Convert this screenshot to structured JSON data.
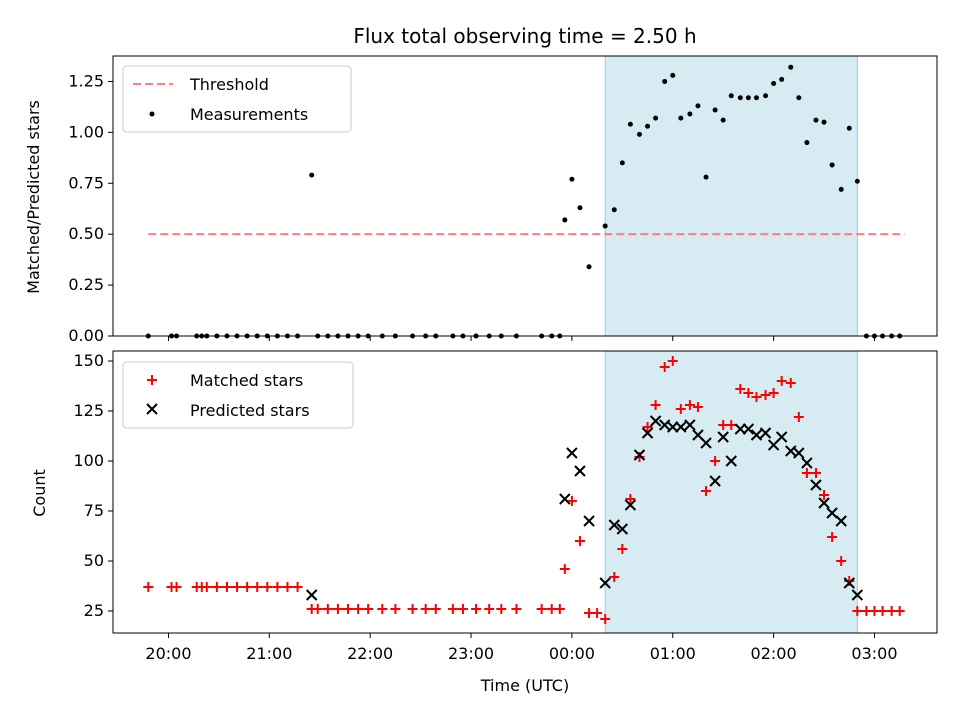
{
  "chart_data": [
    {
      "type": "scatter",
      "title": "Flux total observing time = 2.50 h",
      "xlabel": "",
      "ylabel": "Matched/Predicted stars",
      "ylim": [
        0,
        1.375
      ],
      "yticks": [
        "0.00",
        "0.25",
        "0.50",
        "0.75",
        "1.00",
        "1.25"
      ],
      "shaded_interval_hours": [
        24.33,
        26.83
      ],
      "legend_position": "top-left",
      "threshold": {
        "name": "Threshold",
        "value": 0.5,
        "x_range": [
          19.8,
          27.3
        ],
        "color": "#ff7f7f"
      },
      "series": [
        {
          "name": "Measurements",
          "color": "#000000",
          "points": [
            [
              19.8,
              0
            ],
            [
              20.03,
              0
            ],
            [
              20.08,
              0
            ],
            [
              20.28,
              0
            ],
            [
              20.33,
              0
            ],
            [
              20.38,
              0
            ],
            [
              20.48,
              0
            ],
            [
              20.58,
              0
            ],
            [
              20.68,
              0
            ],
            [
              20.78,
              0
            ],
            [
              20.88,
              0
            ],
            [
              20.98,
              0
            ],
            [
              21.08,
              0
            ],
            [
              21.18,
              0
            ],
            [
              21.28,
              0
            ],
            [
              21.42,
              0.79
            ],
            [
              21.48,
              0
            ],
            [
              21.58,
              0
            ],
            [
              21.68,
              0
            ],
            [
              21.78,
              0
            ],
            [
              21.88,
              0
            ],
            [
              21.98,
              0
            ],
            [
              22.12,
              0
            ],
            [
              22.25,
              0
            ],
            [
              22.42,
              0
            ],
            [
              22.55,
              0
            ],
            [
              22.65,
              0
            ],
            [
              22.82,
              0
            ],
            [
              22.92,
              0
            ],
            [
              23.05,
              0
            ],
            [
              23.18,
              0
            ],
            [
              23.3,
              0
            ],
            [
              23.45,
              0
            ],
            [
              23.7,
              0
            ],
            [
              23.8,
              0
            ],
            [
              23.88,
              0
            ],
            [
              23.93,
              0.57
            ],
            [
              24.0,
              0.77
            ],
            [
              24.08,
              0.63
            ],
            [
              24.17,
              0.34
            ],
            [
              24.33,
              0.54
            ],
            [
              24.42,
              0.62
            ],
            [
              24.5,
              0.85
            ],
            [
              24.58,
              1.04
            ],
            [
              24.67,
              0.99
            ],
            [
              24.75,
              1.03
            ],
            [
              24.83,
              1.07
            ],
            [
              24.92,
              1.25
            ],
            [
              25.0,
              1.28
            ],
            [
              25.08,
              1.07
            ],
            [
              25.17,
              1.09
            ],
            [
              25.25,
              1.13
            ],
            [
              25.33,
              0.78
            ],
            [
              25.42,
              1.11
            ],
            [
              25.5,
              1.06
            ],
            [
              25.58,
              1.18
            ],
            [
              25.67,
              1.17
            ],
            [
              25.75,
              1.17
            ],
            [
              25.83,
              1.17
            ],
            [
              25.92,
              1.18
            ],
            [
              26.0,
              1.24
            ],
            [
              26.08,
              1.26
            ],
            [
              26.17,
              1.32
            ],
            [
              26.25,
              1.17
            ],
            [
              26.33,
              0.95
            ],
            [
              26.42,
              1.06
            ],
            [
              26.5,
              1.05
            ],
            [
              26.58,
              0.84
            ],
            [
              26.67,
              0.72
            ],
            [
              26.75,
              1.02
            ],
            [
              26.83,
              0.76
            ],
            [
              26.92,
              0
            ],
            [
              27.0,
              0
            ],
            [
              27.08,
              0
            ],
            [
              27.17,
              0
            ],
            [
              27.25,
              0
            ]
          ]
        }
      ]
    },
    {
      "type": "scatter",
      "title": "",
      "xlabel": "Time (UTC)",
      "ylabel": "Count",
      "ylim": [
        14,
        155
      ],
      "yticks": [
        "25",
        "50",
        "75",
        "100",
        "125",
        "150"
      ],
      "xticks": [
        {
          "hour": 20,
          "label": "20:00"
        },
        {
          "hour": 21,
          "label": "21:00"
        },
        {
          "hour": 22,
          "label": "22:00"
        },
        {
          "hour": 23,
          "label": "23:00"
        },
        {
          "hour": 24,
          "label": "00:00"
        },
        {
          "hour": 25,
          "label": "01:00"
        },
        {
          "hour": 26,
          "label": "02:00"
        },
        {
          "hour": 27,
          "label": "03:00"
        }
      ],
      "xlim_hours": [
        19.45,
        27.62
      ],
      "shaded_interval_hours": [
        24.33,
        26.83
      ],
      "legend_position": "top-left",
      "series": [
        {
          "name": "Matched stars",
          "marker": "plus",
          "color": "#ff0000",
          "points": [
            [
              19.8,
              37
            ],
            [
              20.03,
              37
            ],
            [
              20.08,
              37
            ],
            [
              20.28,
              37
            ],
            [
              20.33,
              37
            ],
            [
              20.38,
              37
            ],
            [
              20.48,
              37
            ],
            [
              20.58,
              37
            ],
            [
              20.68,
              37
            ],
            [
              20.78,
              37
            ],
            [
              20.88,
              37
            ],
            [
              20.98,
              37
            ],
            [
              21.08,
              37
            ],
            [
              21.18,
              37
            ],
            [
              21.28,
              37
            ],
            [
              21.42,
              26
            ],
            [
              21.48,
              26
            ],
            [
              21.58,
              26
            ],
            [
              21.68,
              26
            ],
            [
              21.78,
              26
            ],
            [
              21.88,
              26
            ],
            [
              21.98,
              26
            ],
            [
              22.12,
              26
            ],
            [
              22.25,
              26
            ],
            [
              22.42,
              26
            ],
            [
              22.55,
              26
            ],
            [
              22.65,
              26
            ],
            [
              22.82,
              26
            ],
            [
              22.92,
              26
            ],
            [
              23.05,
              26
            ],
            [
              23.18,
              26
            ],
            [
              23.3,
              26
            ],
            [
              23.45,
              26
            ],
            [
              23.7,
              26
            ],
            [
              23.8,
              26
            ],
            [
              23.88,
              26
            ],
            [
              23.93,
              46
            ],
            [
              24.0,
              80
            ],
            [
              24.08,
              60
            ],
            [
              24.17,
              24
            ],
            [
              24.25,
              24
            ],
            [
              24.33,
              21
            ],
            [
              24.42,
              42
            ],
            [
              24.5,
              56
            ],
            [
              24.58,
              81
            ],
            [
              24.67,
              102
            ],
            [
              24.75,
              117
            ],
            [
              24.83,
              128
            ],
            [
              24.92,
              147
            ],
            [
              25.0,
              150
            ],
            [
              25.08,
              126
            ],
            [
              25.17,
              128
            ],
            [
              25.25,
              127
            ],
            [
              25.33,
              85
            ],
            [
              25.42,
              100
            ],
            [
              25.5,
              118
            ],
            [
              25.58,
              118
            ],
            [
              25.67,
              136
            ],
            [
              25.75,
              134
            ],
            [
              25.83,
              132
            ],
            [
              25.92,
              133
            ],
            [
              26.0,
              134
            ],
            [
              26.08,
              140
            ],
            [
              26.17,
              139
            ],
            [
              26.25,
              122
            ],
            [
              26.33,
              94
            ],
            [
              26.42,
              94
            ],
            [
              26.5,
              83
            ],
            [
              26.58,
              62
            ],
            [
              26.67,
              50
            ],
            [
              26.75,
              40
            ],
            [
              26.83,
              25
            ],
            [
              26.92,
              25
            ],
            [
              27.0,
              25
            ],
            [
              27.08,
              25
            ],
            [
              27.17,
              25
            ],
            [
              27.25,
              25
            ]
          ]
        },
        {
          "name": "Predicted stars",
          "marker": "x",
          "color": "#000000",
          "points": [
            [
              21.42,
              33
            ],
            [
              23.93,
              81
            ],
            [
              24.0,
              104
            ],
            [
              24.08,
              95
            ],
            [
              24.17,
              70
            ],
            [
              24.33,
              39
            ],
            [
              24.42,
              68
            ],
            [
              24.5,
              66
            ],
            [
              24.58,
              78
            ],
            [
              24.67,
              103
            ],
            [
              24.75,
              114
            ],
            [
              24.83,
              120
            ],
            [
              24.92,
              118
            ],
            [
              25.0,
              117
            ],
            [
              25.08,
              117
            ],
            [
              25.17,
              118
            ],
            [
              25.25,
              113
            ],
            [
              25.33,
              109
            ],
            [
              25.42,
              90
            ],
            [
              25.5,
              112
            ],
            [
              25.58,
              100
            ],
            [
              25.67,
              116
            ],
            [
              25.75,
              116
            ],
            [
              25.83,
              113
            ],
            [
              25.92,
              114
            ],
            [
              26.0,
              108
            ],
            [
              26.08,
              112
            ],
            [
              26.17,
              105
            ],
            [
              26.25,
              104
            ],
            [
              26.33,
              99
            ],
            [
              26.42,
              88
            ],
            [
              26.5,
              79
            ],
            [
              26.58,
              74
            ],
            [
              26.67,
              70
            ],
            [
              26.75,
              39
            ],
            [
              26.83,
              33
            ]
          ]
        }
      ]
    }
  ]
}
